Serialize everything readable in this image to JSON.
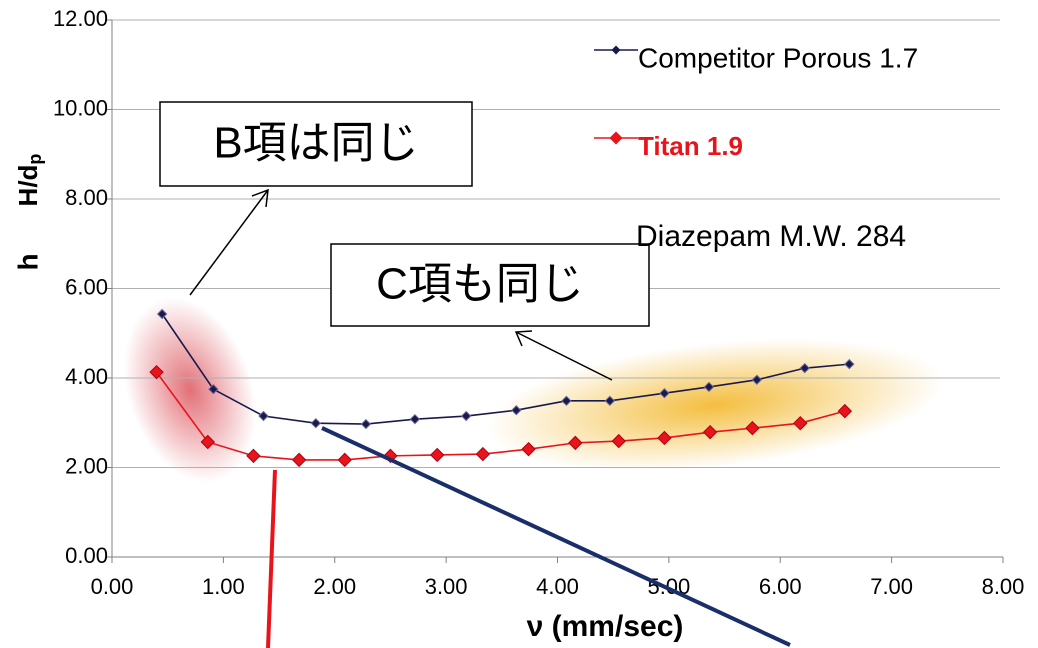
{
  "chart_data": {
    "type": "line",
    "x_label": "ν  (mm/sec)",
    "y_label": "h",
    "y_label_fraction": "H/d",
    "y_label_subscript": "p",
    "annotations": [
      "B項は同じ",
      "C項も同じ",
      "Diazepam M.W. 284"
    ],
    "xlim": [
      0,
      8
    ],
    "xticks": [
      {
        "value": 0,
        "label": "0.00"
      },
      {
        "value": 1,
        "label": "1.00"
      },
      {
        "value": 2,
        "label": "2.00"
      },
      {
        "value": 3,
        "label": "3.00"
      },
      {
        "value": 4,
        "label": "4.00"
      },
      {
        "value": 5,
        "label": "5.00"
      },
      {
        "value": 6,
        "label": "6.00"
      },
      {
        "value": 7,
        "label": "7.00"
      },
      {
        "value": 8,
        "label": "8.00"
      }
    ],
    "ylim": [
      0,
      12
    ],
    "yticks": [
      {
        "value": 0,
        "label": "0.00"
      },
      {
        "value": 2,
        "label": "2.00"
      },
      {
        "value": 4,
        "label": "4.00"
      },
      {
        "value": 6,
        "label": "6.00"
      },
      {
        "value": 8,
        "label": "8.00"
      },
      {
        "value": 10,
        "label": "10.00"
      },
      {
        "value": 12,
        "label": "12.00"
      }
    ],
    "grid": true,
    "series": [
      {
        "name": "Competitor Porous 1.7",
        "color": "#1a1a4a",
        "x": [
          0.45,
          0.91,
          1.36,
          1.83,
          2.28,
          2.72,
          3.18,
          3.63,
          4.08,
          4.47,
          4.96,
          5.36,
          5.79,
          6.22,
          6.62
        ],
        "values": [
          5.43,
          3.75,
          3.15,
          2.99,
          2.97,
          3.08,
          3.15,
          3.28,
          3.49,
          3.49,
          3.66,
          3.8,
          3.96,
          4.22,
          4.31
        ]
      },
      {
        "name": "Titan 1.9",
        "color": "#e8141c",
        "x": [
          0.4,
          0.86,
          1.27,
          1.68,
          2.09,
          2.5,
          2.92,
          3.33,
          3.74,
          4.16,
          4.55,
          4.96,
          5.37,
          5.75,
          6.18,
          6.58
        ],
        "values": [
          4.13,
          2.57,
          2.26,
          2.17,
          2.17,
          2.26,
          2.28,
          2.3,
          2.41,
          2.55,
          2.59,
          2.66,
          2.79,
          2.88,
          2.99,
          3.26
        ]
      }
    ]
  }
}
